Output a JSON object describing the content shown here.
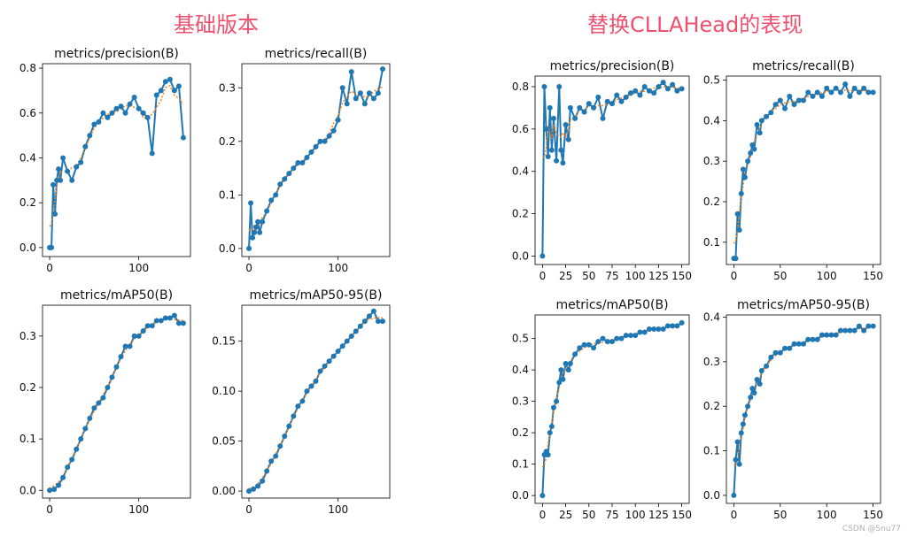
{
  "headings": {
    "left": "基础版本",
    "right": "替换CLLAHead的表现"
  },
  "watermark": "CSDN @Snu77",
  "colors": {
    "heading": "#f0506e",
    "series": "#1f77b4",
    "smooth": "#ff7f0e"
  },
  "chart_data": [
    {
      "id": "base-precision",
      "type": "line",
      "title": "metrics/precision(B)",
      "xlim": [
        -8,
        158
      ],
      "ylim": [
        -0.04,
        0.82
      ],
      "xticks": [
        0,
        100
      ],
      "yticks": [
        0.0,
        0.2,
        0.4,
        0.6,
        0.8
      ],
      "ytick_labels": [
        "0.0",
        "0.2",
        "0.4",
        "0.6",
        "0.8"
      ],
      "series": [
        {
          "x": [
            0,
            2,
            4,
            6,
            8,
            10,
            12,
            15,
            20,
            25,
            30,
            35,
            40,
            45,
            50,
            55,
            60,
            65,
            70,
            75,
            80,
            85,
            90,
            95,
            100,
            105,
            110,
            115,
            120,
            125,
            130,
            135,
            140,
            145,
            150
          ],
          "values": [
            0.0,
            0.0,
            0.28,
            0.15,
            0.3,
            0.35,
            0.3,
            0.4,
            0.34,
            0.3,
            0.36,
            0.38,
            0.45,
            0.5,
            0.55,
            0.56,
            0.6,
            0.58,
            0.6,
            0.62,
            0.63,
            0.6,
            0.64,
            0.67,
            0.62,
            0.6,
            0.58,
            0.42,
            0.68,
            0.7,
            0.74,
            0.75,
            0.7,
            0.72,
            0.49
          ]
        }
      ]
    },
    {
      "id": "base-recall",
      "type": "line",
      "title": "metrics/recall(B)",
      "xlim": [
        -8,
        158
      ],
      "ylim": [
        -0.015,
        0.345
      ],
      "xticks": [
        0,
        100
      ],
      "yticks": [
        0.0,
        0.1,
        0.2,
        0.3
      ],
      "ytick_labels": [
        "0.0",
        "0.1",
        "0.2",
        "0.3"
      ],
      "series": [
        {
          "x": [
            0,
            2,
            4,
            6,
            8,
            10,
            12,
            15,
            20,
            25,
            30,
            35,
            40,
            45,
            50,
            55,
            60,
            65,
            70,
            75,
            80,
            85,
            90,
            95,
            100,
            105,
            110,
            115,
            120,
            125,
            130,
            135,
            140,
            145,
            150
          ],
          "values": [
            0.0,
            0.085,
            0.02,
            0.03,
            0.04,
            0.05,
            0.03,
            0.05,
            0.07,
            0.09,
            0.1,
            0.12,
            0.13,
            0.14,
            0.15,
            0.16,
            0.16,
            0.17,
            0.18,
            0.19,
            0.2,
            0.2,
            0.21,
            0.22,
            0.24,
            0.3,
            0.27,
            0.33,
            0.28,
            0.29,
            0.27,
            0.29,
            0.28,
            0.29,
            0.335
          ]
        }
      ]
    },
    {
      "id": "base-map50",
      "type": "line",
      "title": "metrics/mAP50(B)",
      "xlim": [
        -8,
        158
      ],
      "ylim": [
        -0.015,
        0.36
      ],
      "xticks": [
        0,
        100
      ],
      "yticks": [
        0.0,
        0.1,
        0.2,
        0.3
      ],
      "ytick_labels": [
        "0.0",
        "0.1",
        "0.2",
        "0.3"
      ],
      "series": [
        {
          "x": [
            0,
            5,
            10,
            15,
            20,
            25,
            30,
            35,
            40,
            45,
            50,
            55,
            60,
            65,
            70,
            75,
            80,
            85,
            90,
            95,
            100,
            105,
            110,
            115,
            120,
            125,
            130,
            135,
            140,
            145,
            150
          ],
          "values": [
            0.0,
            0.002,
            0.01,
            0.025,
            0.045,
            0.06,
            0.08,
            0.1,
            0.12,
            0.14,
            0.16,
            0.17,
            0.18,
            0.2,
            0.22,
            0.24,
            0.26,
            0.28,
            0.28,
            0.3,
            0.3,
            0.31,
            0.32,
            0.32,
            0.33,
            0.33,
            0.335,
            0.335,
            0.34,
            0.325,
            0.325
          ]
        }
      ]
    },
    {
      "id": "base-map50-95",
      "type": "line",
      "title": "metrics/mAP50-95(B)",
      "xlim": [
        -8,
        158
      ],
      "ylim": [
        -0.007,
        0.186
      ],
      "xticks": [
        0,
        100
      ],
      "yticks": [
        0.0,
        0.05,
        0.1,
        0.15
      ],
      "ytick_labels": [
        "0.00",
        "0.05",
        "0.10",
        "0.15"
      ],
      "series": [
        {
          "x": [
            0,
            5,
            10,
            15,
            20,
            25,
            30,
            35,
            40,
            45,
            50,
            55,
            60,
            65,
            70,
            75,
            80,
            85,
            90,
            95,
            100,
            105,
            110,
            115,
            120,
            125,
            130,
            135,
            140,
            145,
            150
          ],
          "values": [
            0.0,
            0.002,
            0.005,
            0.01,
            0.02,
            0.03,
            0.035,
            0.045,
            0.055,
            0.065,
            0.075,
            0.085,
            0.09,
            0.1,
            0.105,
            0.11,
            0.12,
            0.125,
            0.13,
            0.135,
            0.14,
            0.145,
            0.15,
            0.155,
            0.16,
            0.165,
            0.17,
            0.175,
            0.18,
            0.17,
            0.17
          ]
        }
      ]
    },
    {
      "id": "new-precision",
      "type": "line",
      "title": "metrics/precision(B)",
      "xlim": [
        -8,
        158
      ],
      "ylim": [
        -0.04,
        0.85
      ],
      "xticks": [
        0,
        25,
        50,
        75,
        100,
        125,
        150
      ],
      "yticks": [
        0.0,
        0.2,
        0.4,
        0.6,
        0.8
      ],
      "ytick_labels": [
        "0.0",
        "0.2",
        "0.4",
        "0.6",
        "0.8"
      ],
      "series": [
        {
          "x": [
            0,
            2,
            4,
            6,
            8,
            10,
            12,
            15,
            18,
            20,
            22,
            25,
            28,
            30,
            35,
            40,
            45,
            50,
            55,
            60,
            65,
            70,
            75,
            80,
            85,
            90,
            95,
            100,
            105,
            110,
            115,
            120,
            125,
            130,
            135,
            140,
            145,
            150
          ],
          "values": [
            0.0,
            0.8,
            0.6,
            0.47,
            0.7,
            0.5,
            0.65,
            0.45,
            0.8,
            0.5,
            0.44,
            0.62,
            0.55,
            0.7,
            0.65,
            0.7,
            0.68,
            0.72,
            0.7,
            0.75,
            0.65,
            0.73,
            0.72,
            0.76,
            0.73,
            0.75,
            0.77,
            0.78,
            0.76,
            0.8,
            0.78,
            0.77,
            0.8,
            0.82,
            0.79,
            0.81,
            0.78,
            0.79
          ]
        }
      ]
    },
    {
      "id": "new-recall",
      "type": "line",
      "title": "metrics/recall(B)",
      "xlim": [
        -8,
        158
      ],
      "ylim": [
        0.045,
        0.51
      ],
      "xticks": [
        0,
        50,
        100,
        150
      ],
      "yticks": [
        0.1,
        0.2,
        0.3,
        0.4,
        0.5
      ],
      "ytick_labels": [
        "0.1",
        "0.2",
        "0.3",
        "0.4",
        "0.5"
      ],
      "series": [
        {
          "x": [
            0,
            2,
            4,
            6,
            8,
            10,
            12,
            15,
            18,
            20,
            22,
            25,
            28,
            30,
            35,
            40,
            45,
            50,
            55,
            60,
            65,
            70,
            75,
            80,
            85,
            90,
            95,
            100,
            105,
            110,
            115,
            120,
            125,
            130,
            135,
            140,
            145,
            150
          ],
          "values": [
            0.06,
            0.06,
            0.17,
            0.13,
            0.22,
            0.28,
            0.26,
            0.3,
            0.32,
            0.34,
            0.33,
            0.39,
            0.37,
            0.4,
            0.41,
            0.42,
            0.44,
            0.45,
            0.43,
            0.46,
            0.44,
            0.45,
            0.45,
            0.47,
            0.46,
            0.47,
            0.46,
            0.48,
            0.47,
            0.48,
            0.47,
            0.49,
            0.46,
            0.48,
            0.47,
            0.48,
            0.47,
            0.47
          ]
        }
      ]
    },
    {
      "id": "new-map50",
      "type": "line",
      "title": "metrics/mAP50(B)",
      "xlim": [
        -8,
        158
      ],
      "ylim": [
        -0.025,
        0.575
      ],
      "xticks": [
        0,
        25,
        50,
        75,
        100,
        125,
        150
      ],
      "yticks": [
        0.0,
        0.1,
        0.2,
        0.3,
        0.4,
        0.5
      ],
      "ytick_labels": [
        "0.0",
        "0.1",
        "0.2",
        "0.3",
        "0.4",
        "0.5"
      ],
      "series": [
        {
          "x": [
            0,
            2,
            4,
            6,
            8,
            10,
            12,
            15,
            18,
            20,
            22,
            25,
            28,
            30,
            35,
            40,
            45,
            50,
            55,
            60,
            65,
            70,
            75,
            80,
            85,
            90,
            95,
            100,
            105,
            110,
            115,
            120,
            125,
            130,
            135,
            140,
            145,
            150
          ],
          "values": [
            0.0,
            0.13,
            0.14,
            0.13,
            0.2,
            0.22,
            0.28,
            0.3,
            0.36,
            0.4,
            0.37,
            0.42,
            0.4,
            0.42,
            0.45,
            0.47,
            0.48,
            0.48,
            0.47,
            0.49,
            0.5,
            0.49,
            0.49,
            0.5,
            0.5,
            0.51,
            0.51,
            0.51,
            0.52,
            0.52,
            0.53,
            0.53,
            0.53,
            0.53,
            0.54,
            0.54,
            0.54,
            0.55
          ]
        }
      ]
    },
    {
      "id": "new-map50-95",
      "type": "line",
      "title": "metrics/mAP50-95(B)",
      "xlim": [
        -8,
        158
      ],
      "ylim": [
        -0.018,
        0.405
      ],
      "xticks": [
        0,
        50,
        100,
        150
      ],
      "yticks": [
        0.0,
        0.1,
        0.2,
        0.3,
        0.4
      ],
      "ytick_labels": [
        "0.0",
        "0.1",
        "0.2",
        "0.3",
        "0.4"
      ],
      "series": [
        {
          "x": [
            0,
            2,
            4,
            6,
            8,
            10,
            12,
            15,
            18,
            20,
            22,
            25,
            28,
            30,
            35,
            40,
            45,
            50,
            55,
            60,
            65,
            70,
            75,
            80,
            85,
            90,
            95,
            100,
            105,
            110,
            115,
            120,
            125,
            130,
            135,
            140,
            145,
            150
          ],
          "values": [
            0.0,
            0.08,
            0.12,
            0.07,
            0.14,
            0.16,
            0.18,
            0.2,
            0.22,
            0.24,
            0.23,
            0.26,
            0.25,
            0.28,
            0.29,
            0.31,
            0.32,
            0.32,
            0.33,
            0.33,
            0.34,
            0.34,
            0.34,
            0.35,
            0.35,
            0.35,
            0.36,
            0.36,
            0.36,
            0.36,
            0.37,
            0.37,
            0.37,
            0.37,
            0.38,
            0.37,
            0.38,
            0.38
          ]
        }
      ]
    }
  ]
}
